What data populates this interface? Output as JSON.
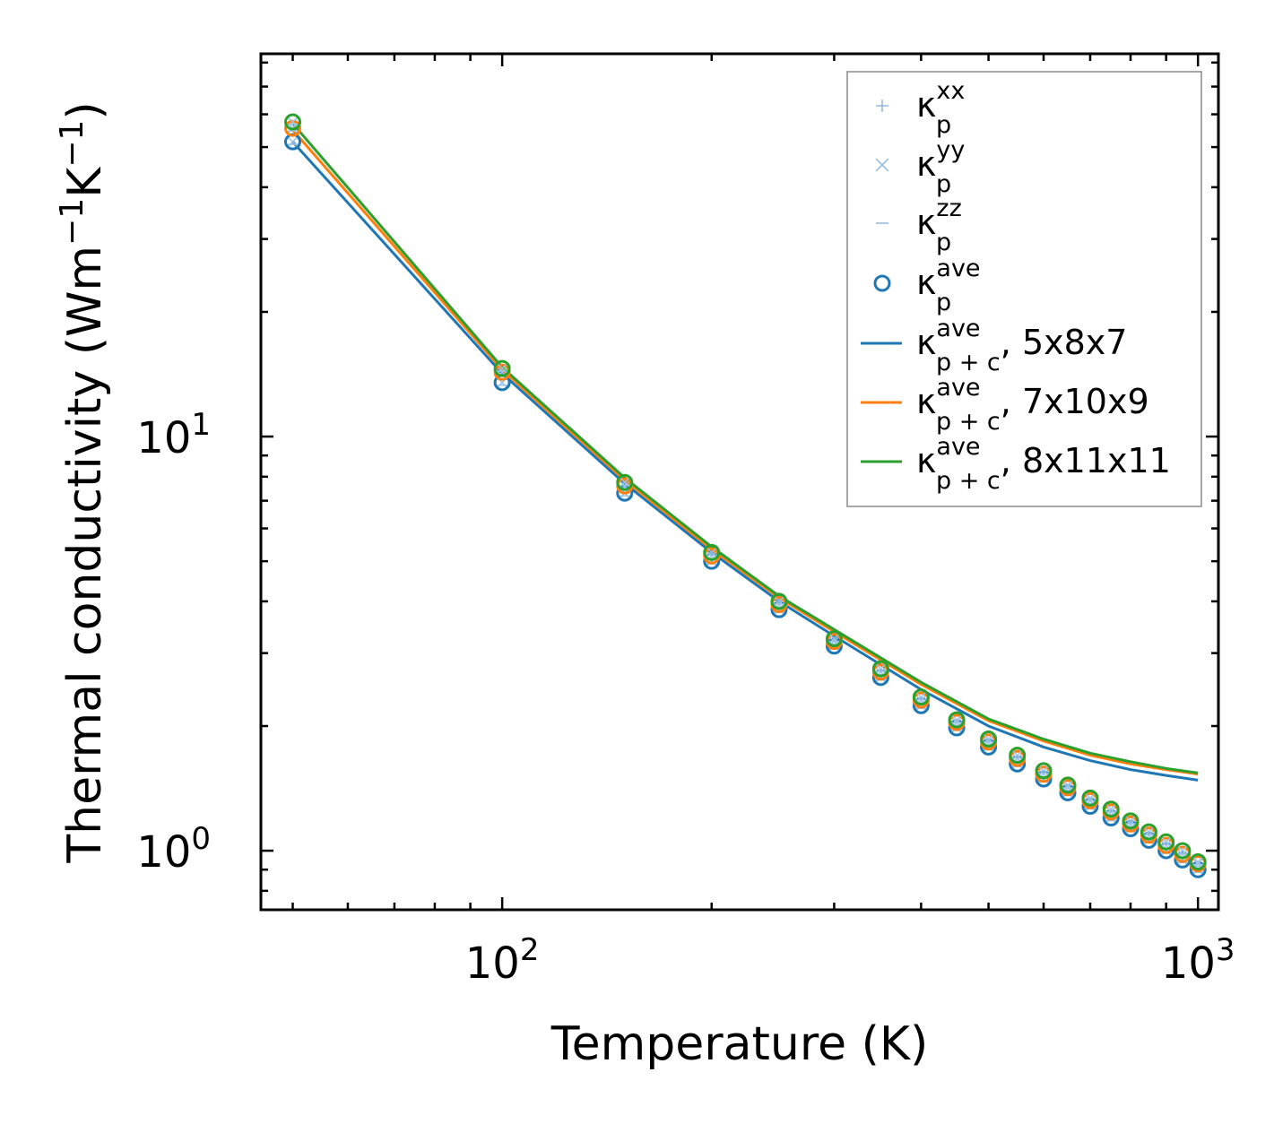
{
  "chart_data": {
    "type": "scatter",
    "xscale": "log",
    "yscale": "log",
    "xlim": [
      45,
      1070
    ],
    "ylim": [
      0.72,
      84
    ],
    "xlabel": "Temperature (K)",
    "ylabel": {
      "base": "Thermal conductivity (Wm",
      "exp1": "−1",
      "mid": "K",
      "exp2": "−1",
      "end": ")"
    },
    "xticks": [
      {
        "value": 100,
        "base": "10",
        "exp": "2"
      },
      {
        "value": 1000,
        "base": "10",
        "exp": "3"
      }
    ],
    "yticks": [
      {
        "value": 1,
        "base": "10",
        "exp": "0"
      },
      {
        "value": 10,
        "base": "10",
        "exp": "1"
      }
    ],
    "x": [
      50,
      100,
      150,
      200,
      250,
      300,
      350,
      400,
      450,
      500,
      550,
      600,
      650,
      700,
      750,
      800,
      850,
      900,
      950,
      1000
    ],
    "point_series": [
      {
        "name": "5x8x7",
        "color": "#1f77b4",
        "ave": [
          51.5,
          13.5,
          7.3,
          5.0,
          3.82,
          3.12,
          2.62,
          2.24,
          1.98,
          1.78,
          1.62,
          1.49,
          1.38,
          1.28,
          1.2,
          1.13,
          1.06,
          1.0,
          0.95,
          0.9
        ]
      },
      {
        "name": "7x10x9",
        "color": "#ff7f0e",
        "ave": [
          55.5,
          14.3,
          7.6,
          5.15,
          3.93,
          3.2,
          2.7,
          2.31,
          2.04,
          1.83,
          1.67,
          1.53,
          1.42,
          1.32,
          1.24,
          1.16,
          1.09,
          1.03,
          0.98,
          0.93
        ]
      },
      {
        "name": "8x11x11",
        "color": "#2ca02c",
        "ave": [
          57.5,
          14.6,
          7.75,
          5.25,
          4.0,
          3.25,
          2.75,
          2.35,
          2.07,
          1.86,
          1.7,
          1.56,
          1.44,
          1.34,
          1.26,
          1.18,
          1.11,
          1.05,
          1.0,
          0.94
        ]
      }
    ],
    "line_series": [
      {
        "name": "5x8x7",
        "color": "#1f77b4",
        "x": [
          50,
          100,
          150,
          200,
          250,
          300,
          400,
          500,
          600,
          700,
          800,
          900,
          1000
        ],
        "values": [
          51.5,
          14.2,
          7.7,
          5.25,
          4.0,
          3.3,
          2.45,
          2.0,
          1.78,
          1.65,
          1.57,
          1.52,
          1.48
        ]
      },
      {
        "name": "7x10x9",
        "color": "#ff7f0e",
        "x": [
          50,
          100,
          150,
          200,
          250,
          300,
          400,
          500,
          600,
          700,
          800,
          900,
          1000
        ],
        "values": [
          55.0,
          14.5,
          7.85,
          5.35,
          4.08,
          3.38,
          2.52,
          2.06,
          1.84,
          1.7,
          1.62,
          1.57,
          1.53
        ]
      },
      {
        "name": "8x11x11",
        "color": "#2ca02c",
        "x": [
          50,
          100,
          150,
          200,
          250,
          300,
          400,
          500,
          600,
          700,
          800,
          900,
          1000
        ],
        "values": [
          57.0,
          14.7,
          7.95,
          5.42,
          4.12,
          3.42,
          2.55,
          2.08,
          1.86,
          1.72,
          1.64,
          1.58,
          1.54
        ]
      }
    ],
    "legend": {
      "placement": "top-right",
      "entries": [
        {
          "marker": "plus",
          "color": "#8fb7da",
          "sym": "κ",
          "sub": "p",
          "sup": "xx",
          "tail": ""
        },
        {
          "marker": "cross",
          "color": "#8fb7da",
          "sym": "κ",
          "sub": "p",
          "sup": "yy",
          "tail": ""
        },
        {
          "marker": "dash",
          "color": "#8fb7da",
          "sym": "κ",
          "sub": "p",
          "sup": "zz",
          "tail": ""
        },
        {
          "marker": "circle",
          "color": "#1f77b4",
          "sym": "κ",
          "sub": "p",
          "sup": "ave",
          "tail": ""
        },
        {
          "marker": "line",
          "color": "#1f77b4",
          "sym": "κ",
          "sub": "p + c",
          "sup": "ave",
          "tail": ", 5x8x7"
        },
        {
          "marker": "line",
          "color": "#ff7f0e",
          "sym": "κ",
          "sub": "p + c",
          "sup": "ave",
          "tail": ", 7x10x9"
        },
        {
          "marker": "line",
          "color": "#2ca02c",
          "sym": "κ",
          "sub": "p + c",
          "sup": "ave",
          "tail": ", 8x11x11"
        }
      ]
    }
  }
}
